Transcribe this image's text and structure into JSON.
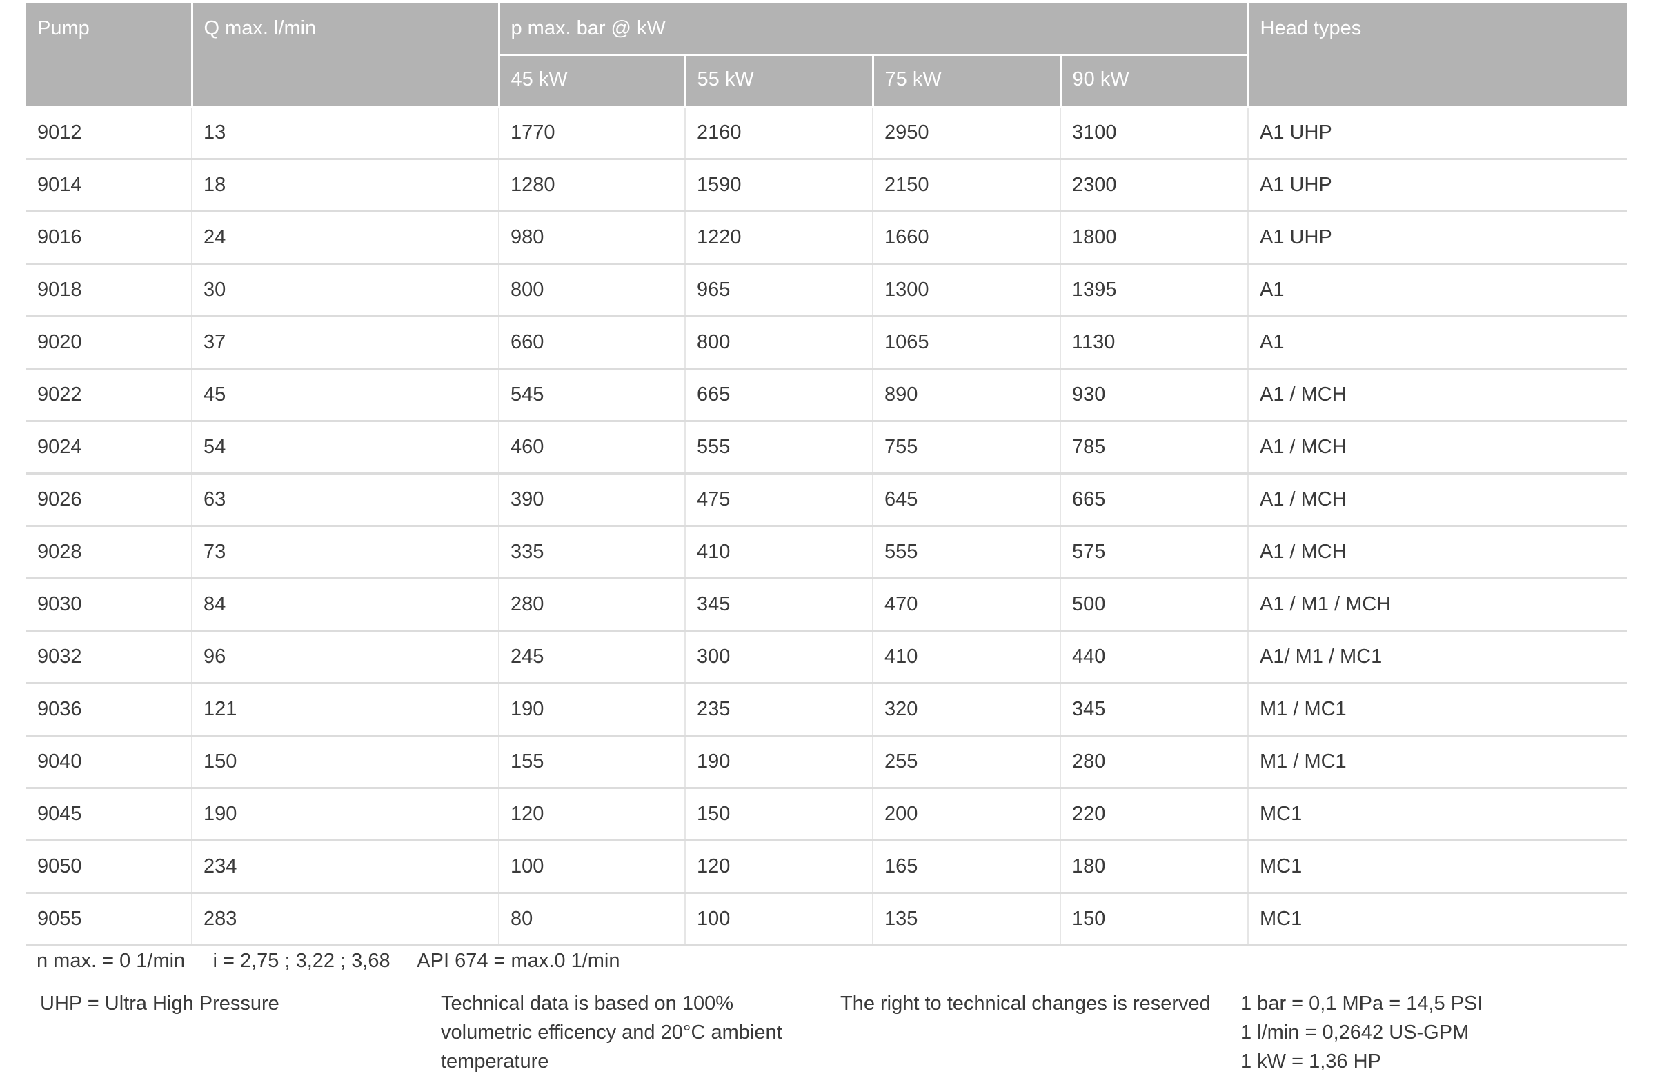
{
  "table": {
    "headers": {
      "pump": "Pump",
      "q_max": "Q max. l/min",
      "p_max": "p max. bar @ kW",
      "power": [
        "45 kW",
        "55 kW",
        "75 kW",
        "90 kW"
      ],
      "head_types": "Head types"
    },
    "rows": [
      [
        "9012",
        "13",
        "1770",
        "2160",
        "2950",
        "3100",
        "A1 UHP"
      ],
      [
        "9014",
        "18",
        "1280",
        "1590",
        "2150",
        "2300",
        "A1 UHP"
      ],
      [
        "9016",
        "24",
        "980",
        "1220",
        "1660",
        "1800",
        "A1 UHP"
      ],
      [
        "9018",
        "30",
        "800",
        "965",
        "1300",
        "1395",
        "A1"
      ],
      [
        "9020",
        "37",
        "660",
        "800",
        "1065",
        "1130",
        "A1"
      ],
      [
        "9022",
        "45",
        "545",
        "665",
        "890",
        "930",
        "A1 / MCH"
      ],
      [
        "9024",
        "54",
        "460",
        "555",
        "755",
        "785",
        "A1 / MCH"
      ],
      [
        "9026",
        "63",
        "390",
        "475",
        "645",
        "665",
        "A1 / MCH"
      ],
      [
        "9028",
        "73",
        "335",
        "410",
        "555",
        "575",
        "A1 / MCH"
      ],
      [
        "9030",
        "84",
        "280",
        "345",
        "470",
        "500",
        "A1 / M1 / MCH"
      ],
      [
        "9032",
        "96",
        "245",
        "300",
        "410",
        "440",
        "A1/ M1 / MC1"
      ],
      [
        "9036",
        "121",
        "190",
        "235",
        "320",
        "345",
        "M1 / MC1"
      ],
      [
        "9040",
        "150",
        "155",
        "190",
        "255",
        "280",
        "M1 / MC1"
      ],
      [
        "9045",
        "190",
        "120",
        "150",
        "200",
        "220",
        "MC1"
      ],
      [
        "9050",
        "234",
        "100",
        "120",
        "165",
        "180",
        "MC1"
      ],
      [
        "9055",
        "283",
        "80",
        "100",
        "135",
        "150",
        "MC1"
      ]
    ]
  },
  "footer": {
    "line1": "n max. = 0 1/min     i = 2,75 ; 3,22 ; 3,68     API 674 = max.0 1/min",
    "uhp": "UHP = Ultra High Pressure",
    "technical": [
      "Technical data is based on 100%",
      "volumetric efficency and 20°C ambient",
      "temperature"
    ],
    "rights": "The right to technical changes is reserved",
    "conversions": [
      "1 bar = 0,1 MPa = 14,5 PSI",
      "1 l/min = 0,2642 US-GPM",
      "1 kW = 1,36 HP"
    ]
  },
  "colors": {
    "header_bg": "#b3b3b3",
    "header_text": "#ffffff",
    "row_border": "#dcdcdc"
  }
}
